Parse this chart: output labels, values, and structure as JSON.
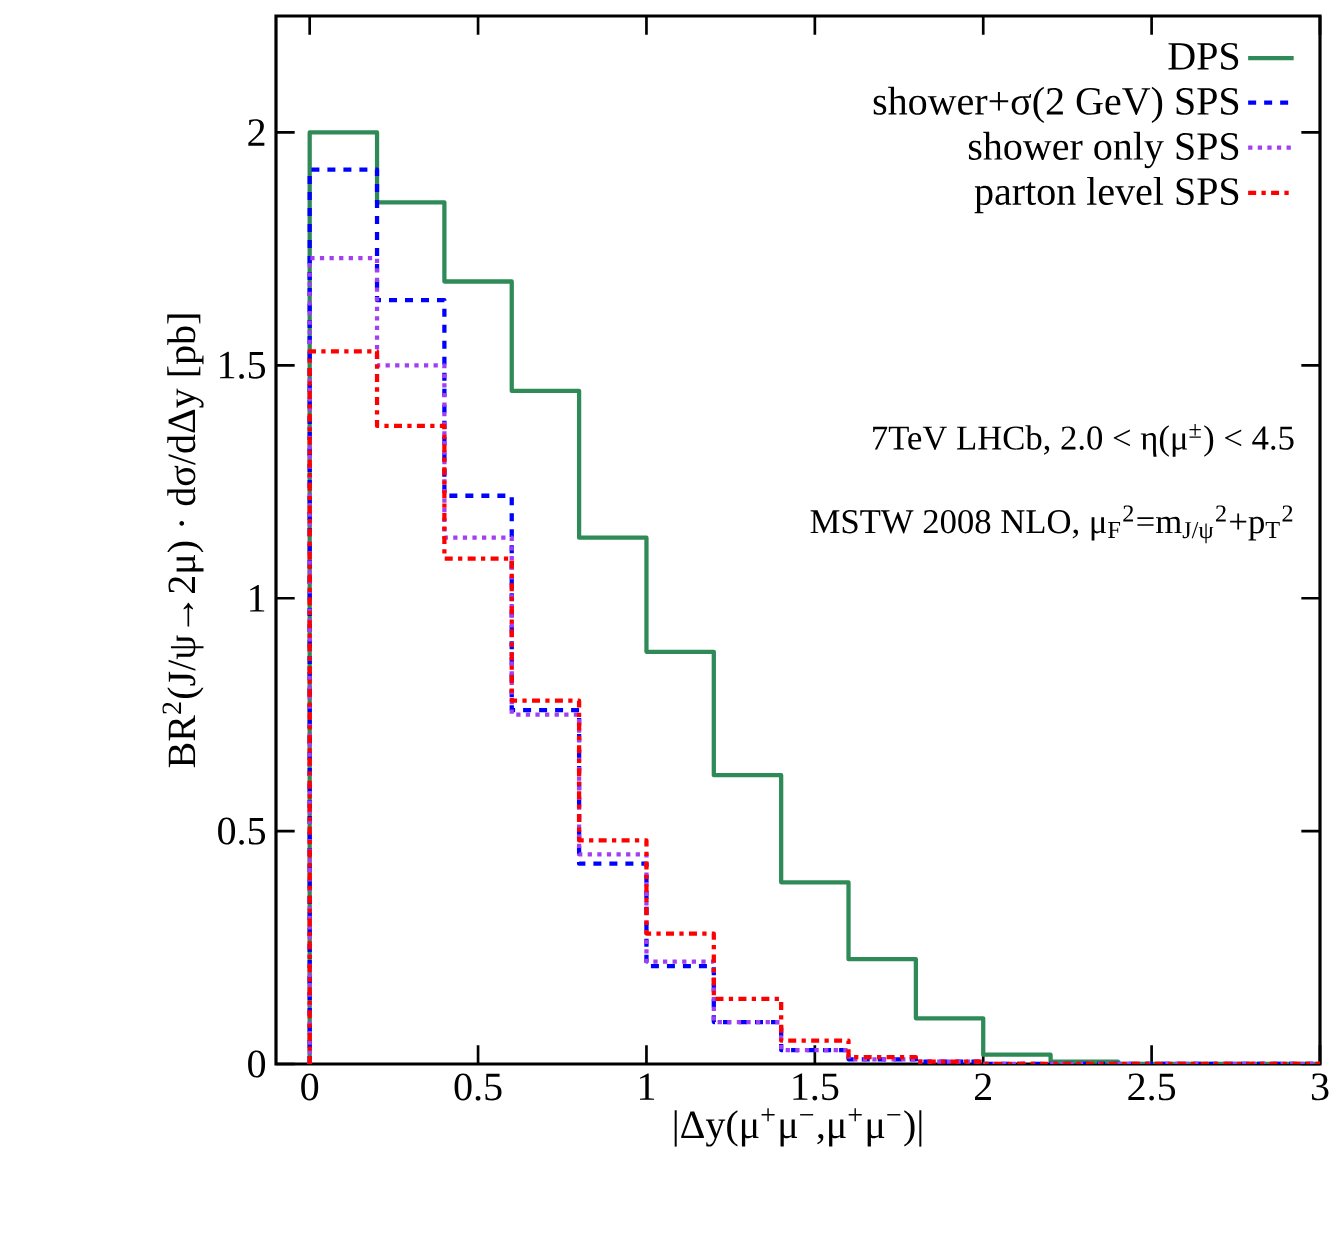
{
  "chart_data": {
    "type": "histogram",
    "xlabel": "|Δy(μ$^{+}$μ$^{−}$,μ$^{+}$μ$^{−}$)|",
    "ylabel": "BR$^{2}$(J/ψ→2μ) · dσ/dΔy [pb]",
    "bins": [
      0,
      0.2,
      0.4,
      0.6,
      0.8,
      1.0,
      1.2,
      1.4,
      1.6,
      1.8,
      2.0,
      2.2,
      2.4,
      2.6,
      2.8,
      3.0
    ],
    "series": [
      {
        "name": "DPS",
        "color": "#2e8b57",
        "line_style": "solid",
        "values": [
          2.0,
          1.85,
          1.68,
          1.445,
          1.13,
          0.885,
          0.62,
          0.39,
          0.225,
          0.098,
          0.02,
          0.005,
          0,
          0,
          0
        ]
      },
      {
        "name": "shower+σ(2 GeV) SPS",
        "color": "#0000ff",
        "line_style": "dashed",
        "values": [
          1.92,
          1.64,
          1.22,
          0.76,
          0.43,
          0.21,
          0.09,
          0.03,
          0.01,
          0.005,
          0,
          0,
          0,
          0,
          0
        ]
      },
      {
        "name": "shower only SPS",
        "color": "#a040f0",
        "line_style": "dotted",
        "values": [
          1.73,
          1.5,
          1.13,
          0.75,
          0.45,
          0.22,
          0.09,
          0.03,
          0.01,
          0.005,
          0,
          0,
          0,
          0,
          0
        ]
      },
      {
        "name": "parton level SPS",
        "color": "#ff0000",
        "line_style": "dashdot",
        "values": [
          1.53,
          1.37,
          1.085,
          0.78,
          0.48,
          0.28,
          0.14,
          0.05,
          0.015,
          0.005,
          0,
          0,
          0,
          0,
          0
        ]
      }
    ],
    "xlim": [
      -0.1,
      3
    ],
    "ylim": [
      0,
      2.25
    ],
    "xticks": [
      0,
      0.5,
      1,
      1.5,
      2,
      2.5,
      3
    ],
    "yticks": [
      0,
      0.5,
      1,
      1.5,
      2
    ],
    "legend": "top right",
    "marker": "none",
    "annotations": [
      "7TeV LHCb, 2.0 < η(μ$^{±}$) < 4.5",
      "MSTW 2008 NLO, μ$_{F}$$^{2}$=m$_{J/ψ}$$^{2}$+p$_{T}$$^{2}$"
    ]
  }
}
